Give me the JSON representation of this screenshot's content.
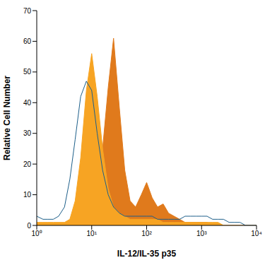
{
  "chart_data": {
    "type": "area",
    "x_label": "IL-12/IL-35 p35",
    "y_label": "Relative Cell Number",
    "log": "x",
    "grid": false,
    "xlim": [
      1,
      10000
    ],
    "xticks": [
      {
        "value": 1,
        "label": "10⁰"
      },
      {
        "value": 10,
        "label": "10¹"
      },
      {
        "value": 100,
        "label": "10²"
      },
      {
        "value": 1000,
        "label": "10³"
      },
      {
        "value": 10000,
        "label": "10⁴"
      }
    ],
    "ylim": [
      0,
      70
    ],
    "yticks": [
      0,
      10,
      20,
      30,
      40,
      50,
      60,
      70
    ],
    "x": [
      1,
      1.3,
      1.6,
      2,
      2.5,
      3.2,
      4,
      5,
      6.3,
      8,
      10,
      12.6,
      15.8,
      20,
      25,
      32,
      40,
      50,
      63,
      80,
      100,
      126,
      158,
      200,
      251,
      316,
      398,
      501,
      631,
      794,
      1000,
      1259,
      1585,
      1995,
      2512,
      3162,
      3981,
      5012,
      6310,
      7943,
      10000
    ],
    "series": [
      {
        "type": "area",
        "color": "#e07a1c",
        "values": [
          0,
          0,
          0,
          0,
          0,
          0,
          0,
          0,
          0,
          1,
          3,
          8,
          25,
          45,
          61,
          38,
          18,
          8,
          6,
          10,
          14,
          9,
          6,
          7,
          4,
          3,
          2,
          1,
          1,
          1,
          1,
          1,
          0,
          0,
          0,
          0,
          0,
          0,
          0,
          0,
          0
        ]
      },
      {
        "type": "area",
        "color": "#f7a423",
        "values": [
          1,
          1,
          1,
          1,
          1,
          1,
          2,
          8,
          22,
          44,
          56,
          42,
          25,
          12,
          6,
          4,
          3,
          2,
          2,
          2,
          2,
          2,
          2,
          1,
          1,
          1,
          1,
          1,
          1,
          1,
          1,
          1,
          1,
          1,
          0,
          0,
          0,
          0,
          0,
          0,
          0
        ]
      },
      {
        "type": "line",
        "color": "#1d5f8a",
        "values": [
          3,
          2,
          2,
          2,
          3,
          6,
          15,
          28,
          42,
          47,
          44,
          30,
          18,
          10,
          6,
          4,
          3,
          3,
          3,
          3,
          3,
          3,
          2,
          2,
          2,
          2,
          2,
          3,
          3,
          3,
          3,
          3,
          2,
          2,
          2,
          1,
          1,
          1,
          0,
          0,
          0
        ]
      }
    ]
  }
}
